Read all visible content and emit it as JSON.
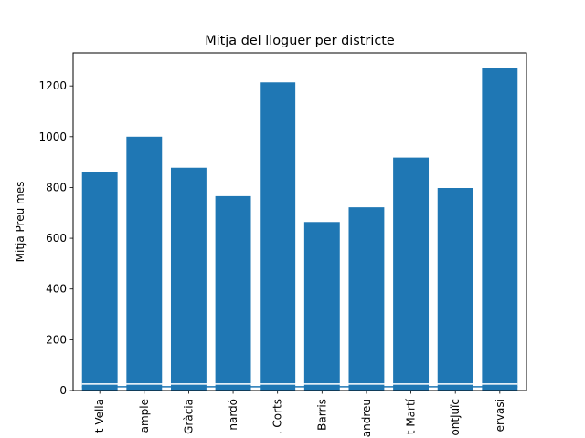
{
  "chart_data": {
    "type": "bar",
    "title": "Mitja del lloguer per districte",
    "xlabel": "",
    "ylabel": "Mitja Preu mes",
    "categories": [
      "t Vella",
      "ample",
      "Gràcia",
      "nardó",
      ". Corts",
      "Barris",
      "andreu",
      "t Martí",
      "ontjuïc",
      "ervasi"
    ],
    "values": [
      860,
      1000,
      878,
      766,
      1214,
      664,
      722,
      918,
      798,
      1272
    ],
    "ylim": [
      0,
      1330
    ],
    "yticks": [
      0,
      200,
      400,
      600,
      800,
      1000,
      1200
    ],
    "bar_color": "#1f77b4",
    "baseline_line_value": 15,
    "grid": false,
    "legend": "none"
  }
}
